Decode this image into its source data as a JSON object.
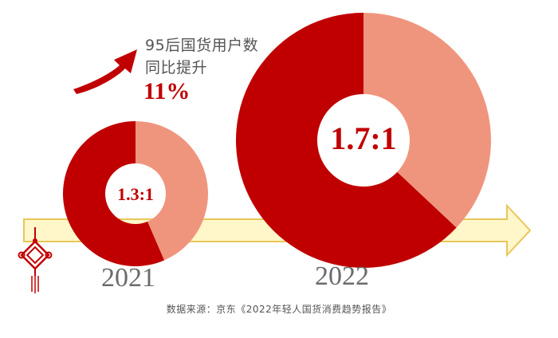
{
  "colors": {
    "major": "#c00000",
    "minor": "#f0957d",
    "timeline_fill": "#fff6c9",
    "timeline_stroke": "#e8c65a",
    "knot": "#c40000"
  },
  "annotation": {
    "line1": "95后国货用户数",
    "line2": "同比提升",
    "value": "11%"
  },
  "source": "数据来源：京东《2022年轻人国货消费趋势报告》",
  "decoration": {
    "knot_icon": "chinese-knot-icon",
    "growth_icon": "curved-up-arrow-icon"
  },
  "chart_data": {
    "type": "pie",
    "charts": [
      {
        "year": "2021",
        "ratio_label": "1.3:1",
        "ratio": [
          1.3,
          1
        ],
        "slices": [
          0.565,
          0.435
        ]
      },
      {
        "year": "2022",
        "ratio_label": "1.7:1",
        "ratio": [
          1.7,
          1
        ],
        "slices": [
          0.63,
          0.37
        ]
      }
    ]
  }
}
